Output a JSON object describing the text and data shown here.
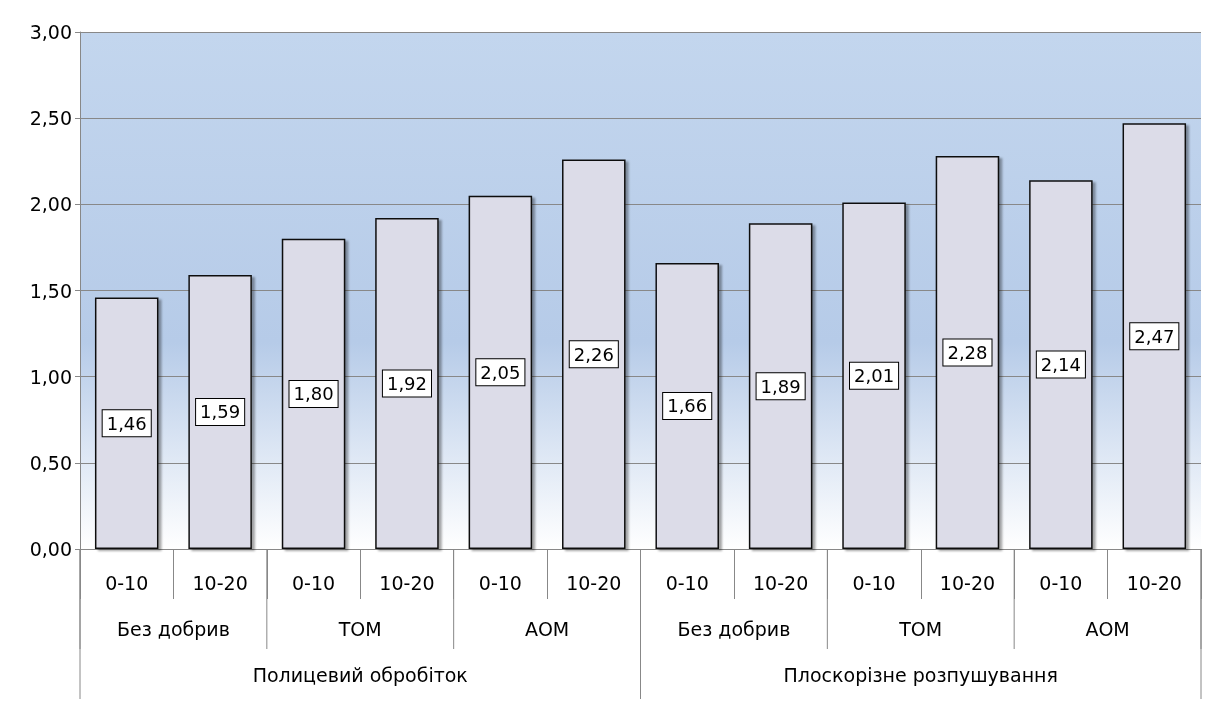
{
  "chart_data": {
    "type": "bar",
    "categories": [
      "0-10",
      "10-20",
      "0-10",
      "10-20",
      "0-10",
      "10-20",
      "0-10",
      "10-20",
      "0-10",
      "10-20",
      "0-10",
      "10-20"
    ],
    "values": [
      1.46,
      1.59,
      1.8,
      1.92,
      2.05,
      2.26,
      1.66,
      1.89,
      2.01,
      2.28,
      2.14,
      2.47
    ],
    "value_labels": [
      "1,46",
      "1,59",
      "1,80",
      "1,92",
      "2,05",
      "2,26",
      "1,66",
      "1,89",
      "2,01",
      "2,28",
      "2,14",
      "2,47"
    ],
    "color": "#dcdce8",
    "ylim": [
      0,
      3
    ],
    "yticks": [
      {
        "value": 0,
        "label": "0,00"
      },
      {
        "value": 0.5,
        "label": "0,50"
      },
      {
        "value": 1,
        "label": "1,00"
      },
      {
        "value": 1.5,
        "label": "1,50"
      },
      {
        "value": 2,
        "label": "2,00"
      },
      {
        "value": 2.5,
        "label": "2,50"
      },
      {
        "value": 3,
        "label": "3,00"
      }
    ],
    "grid": "y",
    "annotations": [
      "Без добрив",
      "ТОМ",
      "АОМ",
      "Без добрив",
      "ТОМ",
      "АОМ",
      "Полицевий обробіток",
      "Плоскорізне розпушування"
    ]
  }
}
